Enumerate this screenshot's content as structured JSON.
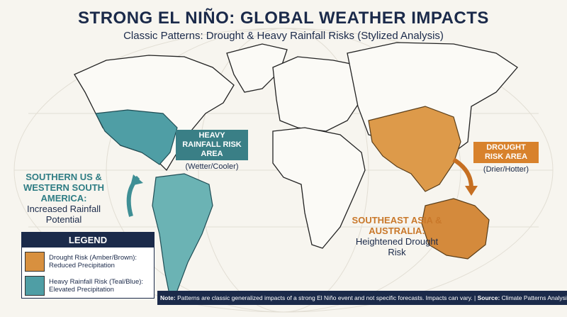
{
  "header": {
    "title": "STRONG EL NIÑO: GLOBAL WEATHER IMPACTS",
    "subtitle": "Classic Patterns: Drought & Heavy Rainfall Risks (Stylized Analysis)"
  },
  "callouts": [
    {
      "title": "HEAVY RAINFALL RISK AREA",
      "detail": "(Wetter/Cooler)"
    },
    {
      "title": "DROUGHT RISK AREA",
      "detail": "(Drier/Hotter)"
    }
  ],
  "regions": [
    {
      "name": "SOUTHERN US & WESTERN SOUTH AMERICA:",
      "impact": "Increased Rainfall Potential"
    },
    {
      "name": "SOUTHEAST ASIA & AUSTRALIA:",
      "impact": "Heightened Drought Risk"
    }
  ],
  "legend": {
    "title": "LEGEND",
    "items": [
      {
        "label": "Drought Risk (Amber/Brown):",
        "detail": "Reduced Precipitation"
      },
      {
        "label": "Heavy Rainfall Risk (Teal/Blue):",
        "detail": "Elevated Precipitation"
      }
    ]
  },
  "footer": {
    "note_label": "Note:",
    "note": "Patterns are classic generalized impacts of a strong El Niño event and not specific forecasts. Impacts can vary.",
    "separator": "|",
    "source_label": "Source:",
    "source": "Climate Patterns Analysis (Editorial Data)"
  }
}
